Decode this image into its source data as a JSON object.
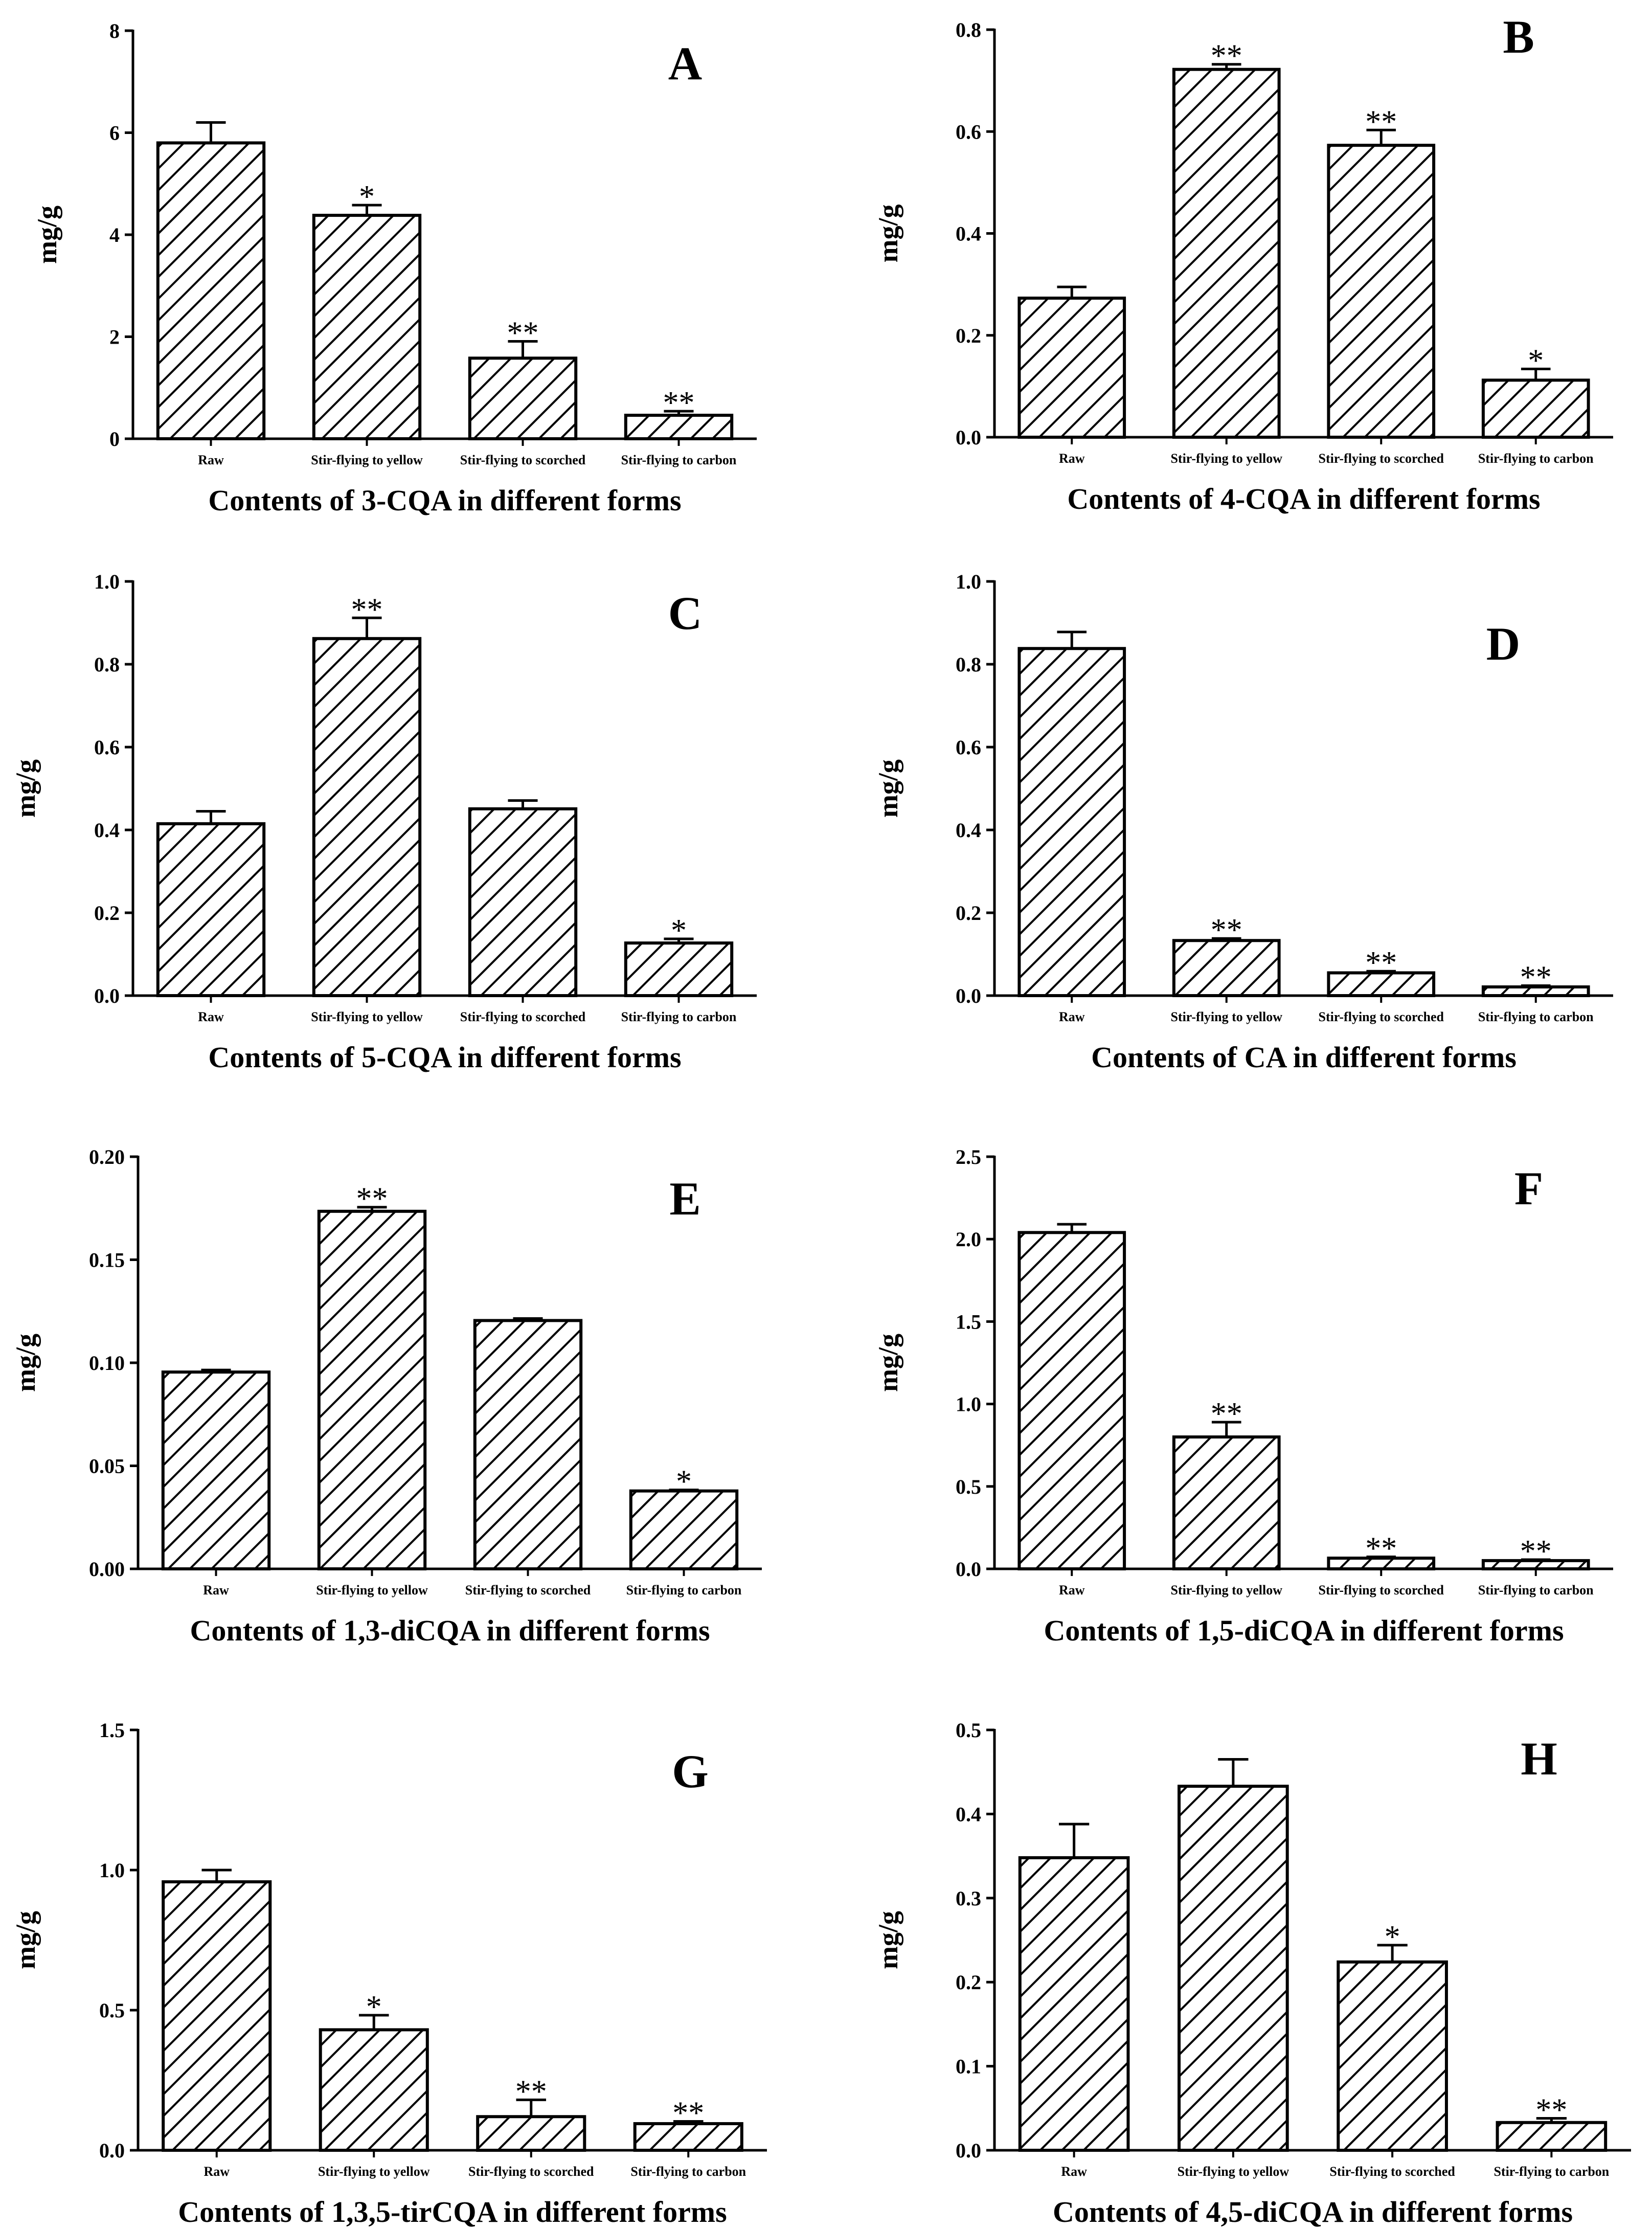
{
  "chart_data": [
    {
      "type": "bar",
      "panel": "A",
      "title": "",
      "xlabel": "Contents of 3-CQA in different forms",
      "ylabel": "mg/g",
      "ylim": [
        0,
        8
      ],
      "yticks": [
        0,
        2,
        4,
        6,
        8
      ],
      "ytick_labels": [
        "0",
        "2",
        "4",
        "6",
        "8"
      ],
      "categories": [
        "Raw",
        "Stir-flying to yellow",
        "Stir-flying to scorched",
        "Stir-flying to carbon"
      ],
      "values": [
        5.8,
        4.38,
        1.58,
        0.46
      ],
      "errors": [
        0.4,
        0.2,
        0.33,
        0.08
      ],
      "significance": [
        "",
        "*",
        "**",
        "**"
      ],
      "grid": false
    },
    {
      "type": "bar",
      "panel": "B",
      "title": "",
      "xlabel": "Contents of 4-CQA in different forms",
      "ylabel": "mg/g",
      "ylim": [
        0,
        0.8
      ],
      "yticks": [
        0,
        0.2,
        0.4,
        0.6,
        0.8
      ],
      "ytick_labels": [
        "0.0",
        "0.2",
        "0.4",
        "0.6",
        "0.8"
      ],
      "categories": [
        "Raw",
        "Stir-flying to yellow",
        "Stir-flying to scorched",
        "Stir-flying to carbon"
      ],
      "values": [
        0.273,
        0.722,
        0.573,
        0.112
      ],
      "errors": [
        0.022,
        0.01,
        0.03,
        0.022
      ],
      "significance": [
        "",
        "**",
        "**",
        "*"
      ],
      "grid": false
    },
    {
      "type": "bar",
      "panel": "C",
      "title": "",
      "xlabel": "Contents of 5-CQA in different forms",
      "ylabel": "mg/g",
      "ylim": [
        0,
        1.0
      ],
      "yticks": [
        0,
        0.2,
        0.4,
        0.6,
        0.8,
        1.0
      ],
      "ytick_labels": [
        "0.0",
        "0.2",
        "0.4",
        "0.6",
        "0.8",
        "1.0"
      ],
      "categories": [
        "Raw",
        "Stir-flying to yellow",
        "Stir-flying to scorched",
        "Stir-flying to carbon"
      ],
      "values": [
        0.415,
        0.862,
        0.451,
        0.127
      ],
      "errors": [
        0.03,
        0.05,
        0.02,
        0.01
      ],
      "significance": [
        "",
        "**",
        "",
        "*"
      ],
      "grid": false
    },
    {
      "type": "bar",
      "panel": "D",
      "title": "",
      "xlabel": "Contents of CA in different forms",
      "ylabel": "mg/g",
      "ylim": [
        0,
        1.0
      ],
      "yticks": [
        0,
        0.2,
        0.4,
        0.6,
        0.8,
        1.0
      ],
      "ytick_labels": [
        "0.0",
        "0.2",
        "0.4",
        "0.6",
        "0.8",
        "1.0"
      ],
      "categories": [
        "Raw",
        "Stir-flying to yellow",
        "Stir-flying to scorched",
        "Stir-flying to carbon"
      ],
      "values": [
        0.838,
        0.133,
        0.055,
        0.021
      ],
      "errors": [
        0.04,
        0.005,
        0.004,
        0.003
      ],
      "significance": [
        "",
        "**",
        "**",
        "**"
      ],
      "grid": false
    },
    {
      "type": "bar",
      "panel": "E",
      "title": "",
      "xlabel": "Contents of 1,3-diCQA in different forms",
      "ylabel": "mg/g",
      "ylim": [
        0,
        0.2
      ],
      "yticks": [
        0,
        0.05,
        0.1,
        0.15,
        0.2
      ],
      "ytick_labels": [
        "0.00",
        "0.05",
        "0.10",
        "0.15",
        "0.20"
      ],
      "categories": [
        "Raw",
        "Stir-flying to yellow",
        "Stir-flying to scorched",
        "Stir-flying to carbon"
      ],
      "values": [
        0.0955,
        0.1735,
        0.1205,
        0.0378
      ],
      "errors": [
        0.001,
        0.002,
        0.001,
        0.0005
      ],
      "significance": [
        "",
        "**",
        "",
        "*"
      ],
      "grid": false
    },
    {
      "type": "bar",
      "panel": "F",
      "title": "",
      "xlabel": "Contents of 1,5-diCQA in different forms",
      "ylabel": "mg/g",
      "ylim": [
        0,
        2.5
      ],
      "yticks": [
        0,
        0.5,
        1.0,
        1.5,
        2.0,
        2.5
      ],
      "ytick_labels": [
        "0.0",
        "0.5",
        "1.0",
        "1.5",
        "2.0",
        "2.5"
      ],
      "categories": [
        "Raw",
        "Stir-flying to yellow",
        "Stir-flying to scorched",
        "Stir-flying to carbon"
      ],
      "values": [
        2.04,
        0.8,
        0.065,
        0.05
      ],
      "errors": [
        0.05,
        0.09,
        0.008,
        0.006
      ],
      "significance": [
        "",
        "**",
        "**",
        "**"
      ],
      "grid": false
    },
    {
      "type": "bar",
      "panel": "G",
      "title": "",
      "xlabel": "Contents of 1,3,5-tirCQA in different forms",
      "ylabel": "mg/g",
      "ylim": [
        0,
        1.5
      ],
      "yticks": [
        0,
        0.5,
        1.0,
        1.5
      ],
      "ytick_labels": [
        "0.0",
        "0.5",
        "1.0",
        "1.5"
      ],
      "categories": [
        "Raw",
        "Stir-flying to yellow",
        "Stir-flying to scorched",
        "Stir-flying to carbon"
      ],
      "values": [
        0.958,
        0.43,
        0.12,
        0.095
      ],
      "errors": [
        0.042,
        0.052,
        0.06,
        0.008
      ],
      "significance": [
        "",
        "*",
        "**",
        "**"
      ],
      "grid": false
    },
    {
      "type": "bar",
      "panel": "H",
      "title": "",
      "xlabel": "Contents of 4,5-diCQA in different forms",
      "ylabel": "mg/g",
      "ylim": [
        0,
        0.5
      ],
      "yticks": [
        0,
        0.1,
        0.2,
        0.3,
        0.4,
        0.5
      ],
      "ytick_labels": [
        "0.0",
        "0.1",
        "0.2",
        "0.3",
        "0.4",
        "0.5"
      ],
      "categories": [
        "Raw",
        "Stir-flying to yellow",
        "Stir-flying to scorched",
        "Stir-flying to carbon"
      ],
      "values": [
        0.348,
        0.433,
        0.224,
        0.033
      ],
      "errors": [
        0.04,
        0.032,
        0.02,
        0.005
      ],
      "significance": [
        "",
        "",
        "*",
        "**"
      ],
      "grid": false
    }
  ]
}
